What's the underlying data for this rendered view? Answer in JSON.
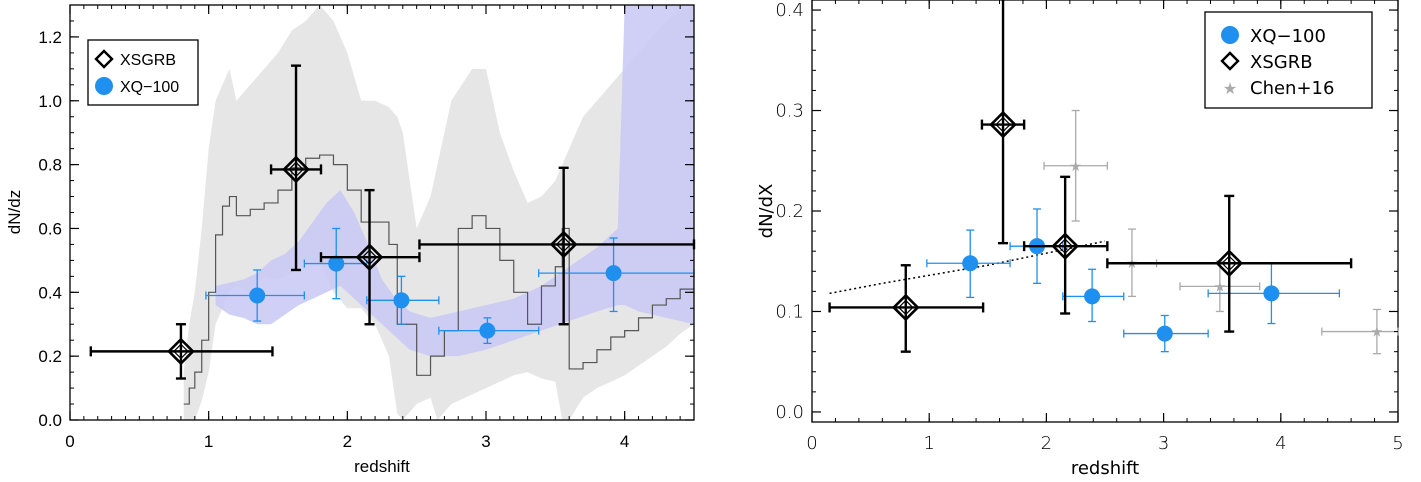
{
  "chart_data": [
    {
      "type": "scatter",
      "xlabel": "redshift",
      "ylabel": "dN/dz",
      "xlim": [
        0,
        4.5
      ],
      "ylim": [
        0,
        1.3
      ],
      "x_ticks": [
        "0",
        "1",
        "2",
        "3",
        "4"
      ],
      "y_ticks": [
        "0.0",
        "0.2",
        "0.4",
        "0.6",
        "0.8",
        "1.0",
        "1.2"
      ],
      "legend": [
        "XSGRB",
        "XQ−100"
      ],
      "legend_position": "top-left",
      "colors": {
        "xsgrb": "#000000",
        "xq100": "#1f8ff0",
        "grb_band": "#e6e6e6",
        "qso_band": "#c8c8f5"
      },
      "series": [
        {
          "name": "XSGRB",
          "marker": "open-diamond",
          "points": [
            {
              "x": 0.8,
              "y": 0.215,
              "xlo": 0.15,
              "xhi": 1.46,
              "ylo": 0.13,
              "yhi": 0.3
            },
            {
              "x": 1.63,
              "y": 0.785,
              "xlo": 1.45,
              "xhi": 1.81,
              "ylo": 0.47,
              "yhi": 1.11
            },
            {
              "x": 2.16,
              "y": 0.51,
              "xlo": 1.81,
              "xhi": 2.52,
              "ylo": 0.3,
              "yhi": 0.72
            },
            {
              "x": 3.56,
              "y": 0.55,
              "xlo": 2.52,
              "xhi": 4.5,
              "ylo": 0.3,
              "yhi": 0.79
            }
          ]
        },
        {
          "name": "XQ−100",
          "marker": "filled-circle",
          "points": [
            {
              "x": 1.35,
              "y": 0.39,
              "xlo": 0.98,
              "xhi": 1.69,
              "ylo": 0.31,
              "yhi": 0.47
            },
            {
              "x": 1.92,
              "y": 0.49,
              "xlo": 1.69,
              "xhi": 2.14,
              "ylo": 0.38,
              "yhi": 0.6
            },
            {
              "x": 2.39,
              "y": 0.375,
              "xlo": 2.14,
              "xhi": 2.66,
              "ylo": 0.3,
              "yhi": 0.45
            },
            {
              "x": 3.01,
              "y": 0.28,
              "xlo": 2.66,
              "xhi": 3.38,
              "ylo": 0.24,
              "yhi": 0.32
            },
            {
              "x": 3.92,
              "y": 0.46,
              "xlo": 3.38,
              "xhi": 4.5,
              "ylo": 0.34,
              "yhi": 0.57
            }
          ]
        }
      ],
      "grb_band": {
        "x": [
          0.82,
          0.86,
          0.9,
          0.95,
          1.0,
          1.05,
          1.1,
          1.15,
          1.2,
          1.3,
          1.4,
          1.5,
          1.6,
          1.7,
          1.8,
          1.9,
          2.0,
          2.1,
          2.2,
          2.3,
          2.36,
          2.4,
          2.5,
          2.6,
          2.65,
          2.75,
          2.9,
          3.0,
          3.1,
          3.2,
          3.3,
          3.4,
          3.5,
          3.55,
          3.6,
          3.7,
          3.8,
          3.9,
          4.0,
          4.1,
          4.2,
          4.3,
          4.4,
          4.5
        ],
        "lo": [
          0.0,
          0.0,
          0.0,
          0.06,
          0.15,
          0.3,
          0.35,
          0.4,
          0.42,
          0.4,
          0.45,
          0.44,
          0.46,
          0.5,
          0.5,
          0.4,
          0.35,
          0.35,
          0.3,
          0.2,
          0.02,
          0.0,
          0.05,
          0.07,
          0.0,
          0.05,
          0.08,
          0.1,
          0.12,
          0.14,
          0.15,
          0.13,
          0.12,
          0.0,
          0.0,
          0.07,
          0.1,
          0.12,
          0.14,
          0.17,
          0.2,
          0.23,
          0.27,
          0.3
        ],
        "hi": [
          0.15,
          0.3,
          0.4,
          0.6,
          0.85,
          1.0,
          1.05,
          1.1,
          1.0,
          1.05,
          1.1,
          1.15,
          1.22,
          1.25,
          1.3,
          1.25,
          1.15,
          1.0,
          1.0,
          0.98,
          0.95,
          0.9,
          0.6,
          0.7,
          0.8,
          1.0,
          1.1,
          1.1,
          0.9,
          0.78,
          0.68,
          0.7,
          0.75,
          0.8,
          0.85,
          0.95,
          1.0,
          1.05,
          1.1,
          1.15,
          1.2,
          1.25,
          1.28,
          1.3
        ]
      },
      "grb_line": {
        "x": [
          0.82,
          0.86,
          0.9,
          0.95,
          1.0,
          1.05,
          1.1,
          1.15,
          1.2,
          1.3,
          1.4,
          1.5,
          1.6,
          1.7,
          1.8,
          1.9,
          2.0,
          2.1,
          2.2,
          2.3,
          2.36,
          2.4,
          2.5,
          2.6,
          2.7,
          2.8,
          2.9,
          3.0,
          3.1,
          3.2,
          3.3,
          3.4,
          3.5,
          3.55,
          3.6,
          3.7,
          3.8,
          3.9,
          4.0,
          4.1,
          4.2,
          4.3,
          4.4,
          4.5
        ],
        "y": [
          0.05,
          0.1,
          0.15,
          0.25,
          0.4,
          0.58,
          0.67,
          0.7,
          0.64,
          0.66,
          0.68,
          0.72,
          0.79,
          0.82,
          0.83,
          0.8,
          0.72,
          0.62,
          0.62,
          0.55,
          0.3,
          0.3,
          0.14,
          0.2,
          0.28,
          0.6,
          0.64,
          0.6,
          0.5,
          0.4,
          0.3,
          0.42,
          0.48,
          0.6,
          0.16,
          0.18,
          0.22,
          0.26,
          0.28,
          0.32,
          0.36,
          0.38,
          0.41,
          0.44
        ]
      },
      "qso_band": {
        "x": [
          1.05,
          1.15,
          1.25,
          1.35,
          1.45,
          1.55,
          1.65,
          1.75,
          1.85,
          1.95,
          2.05,
          2.15,
          2.25,
          2.35,
          2.45,
          2.6,
          2.8,
          3.0,
          3.2,
          3.4,
          3.6,
          3.8,
          3.95,
          4.0,
          4.1,
          4.2,
          4.3,
          4.4,
          4.5
        ],
        "lo": [
          0.36,
          0.33,
          0.32,
          0.3,
          0.3,
          0.33,
          0.36,
          0.38,
          0.4,
          0.42,
          0.38,
          0.34,
          0.3,
          0.26,
          0.22,
          0.2,
          0.2,
          0.22,
          0.25,
          0.28,
          0.31,
          0.34,
          0.36,
          0.36,
          0.34,
          0.33,
          0.32,
          0.31,
          0.3
        ],
        "hi": [
          0.42,
          0.43,
          0.44,
          0.46,
          0.5,
          0.52,
          0.56,
          0.62,
          0.68,
          0.72,
          0.65,
          0.55,
          0.44,
          0.38,
          0.34,
          0.32,
          0.34,
          0.36,
          0.38,
          0.42,
          0.48,
          0.54,
          0.6,
          1.3,
          1.3,
          1.3,
          1.3,
          1.3,
          1.3
        ]
      }
    },
    {
      "type": "scatter",
      "xlabel": "redshift",
      "ylabel": "dN/dX",
      "xlim": [
        0,
        5
      ],
      "ylim": [
        -0.01,
        0.41
      ],
      "x_ticks": [
        "0",
        "1",
        "2",
        "3",
        "4",
        "5"
      ],
      "y_ticks": [
        "0.0",
        "0.1",
        "0.2",
        "0.3",
        "0.4"
      ],
      "legend": [
        "XQ−100",
        "XSGRB",
        "Chen+16"
      ],
      "legend_position": "top-right",
      "colors": {
        "xsgrb": "#000000",
        "xq100": "#1f8ff0",
        "chen16": "#aaaaaa",
        "fit": "#000000"
      },
      "series": [
        {
          "name": "XQ−100",
          "marker": "filled-circle",
          "points": [
            {
              "x": 1.35,
              "y": 0.148,
              "xlo": 0.98,
              "xhi": 1.69,
              "ylo": 0.114,
              "yhi": 0.181
            },
            {
              "x": 1.92,
              "y": 0.165,
              "xlo": 1.69,
              "xhi": 2.14,
              "ylo": 0.128,
              "yhi": 0.202
            },
            {
              "x": 2.39,
              "y": 0.115,
              "xlo": 2.14,
              "xhi": 2.66,
              "ylo": 0.09,
              "yhi": 0.142
            },
            {
              "x": 3.01,
              "y": 0.078,
              "xlo": 2.66,
              "xhi": 3.38,
              "ylo": 0.06,
              "yhi": 0.096
            },
            {
              "x": 3.92,
              "y": 0.118,
              "xlo": 3.38,
              "xhi": 4.5,
              "ylo": 0.088,
              "yhi": 0.148
            }
          ]
        },
        {
          "name": "XSGRB",
          "marker": "open-diamond",
          "points": [
            {
              "x": 0.8,
              "y": 0.104,
              "xlo": 0.15,
              "xhi": 1.46,
              "ylo": 0.06,
              "yhi": 0.146
            },
            {
              "x": 1.63,
              "y": 0.286,
              "xlo": 1.45,
              "xhi": 1.81,
              "ylo": 0.168,
              "yhi": 0.42
            },
            {
              "x": 2.16,
              "y": 0.165,
              "xlo": 1.81,
              "xhi": 2.52,
              "ylo": 0.098,
              "yhi": 0.234
            },
            {
              "x": 3.56,
              "y": 0.148,
              "xlo": 2.52,
              "xhi": 4.6,
              "ylo": 0.08,
              "yhi": 0.215
            }
          ]
        },
        {
          "name": "Chen+16",
          "marker": "star",
          "points": [
            {
              "x": 2.25,
              "y": 0.245,
              "xlo": 1.98,
              "xhi": 2.52,
              "ylo": 0.19,
              "yhi": 0.3
            },
            {
              "x": 2.73,
              "y": 0.148,
              "xlo": 2.52,
              "xhi": 2.94,
              "ylo": 0.115,
              "yhi": 0.182
            },
            {
              "x": 3.48,
              "y": 0.125,
              "xlo": 3.14,
              "xhi": 3.82,
              "ylo": 0.1,
              "yhi": 0.15
            },
            {
              "x": 4.82,
              "y": 0.08,
              "xlo": 4.35,
              "xhi": 5.0,
              "ylo": 0.058,
              "yhi": 0.102
            }
          ]
        }
      ],
      "fit_line": {
        "x": [
          0.15,
          0.6,
          1.0,
          1.5,
          2.0,
          2.5
        ],
        "y": [
          0.118,
          0.128,
          0.136,
          0.146,
          0.158,
          0.17
        ]
      }
    }
  ]
}
